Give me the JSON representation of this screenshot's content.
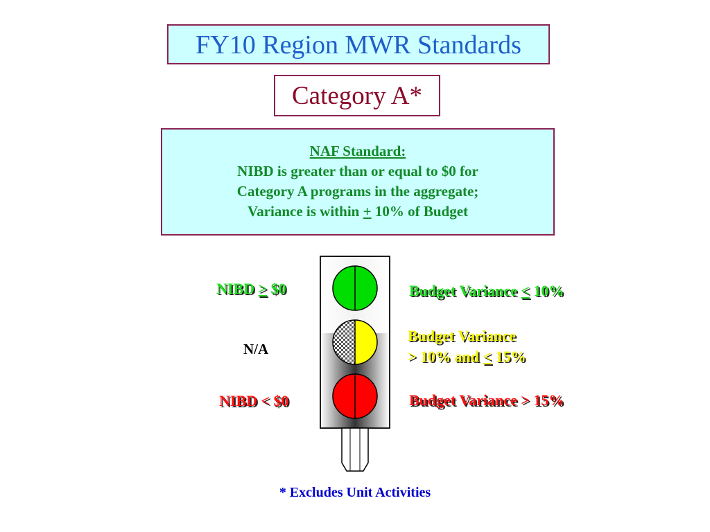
{
  "title": "FY10 Region MWR Standards",
  "category": "Category A*",
  "naf_standard": {
    "heading": "NAF Standard:",
    "line1": "NIBD is greater than or equal to $0 for",
    "line2": "Category A programs in the aggregate;",
    "line3_prefix": "Variance is within ",
    "line3_symbol": "+",
    "line3_suffix": " 10% of Budget"
  },
  "left_labels": {
    "green_prefix": "NIBD ",
    "green_symbol": ">",
    "green_suffix": " $0",
    "yellow": "N/A",
    "red": "NIBD < $0"
  },
  "right_labels": {
    "green_prefix": "Budget Variance ",
    "green_symbol": "<",
    "green_suffix": " 10%",
    "yellow_line1": "Budget Variance",
    "yellow_line2_prefix": "> 10% and ",
    "yellow_line2_symbol": "<",
    "yellow_line2_suffix": " 15%",
    "red": "Budget Variance > 15%"
  },
  "footnote": "* Excludes Unit Activities",
  "colors": {
    "title_text": "#1f5ec9",
    "category_text": "#8b0a2a",
    "box_fill": "#ccffff",
    "box_border": "#8b2252",
    "standard_text": "#128a2a",
    "light_green": "#00dd00",
    "light_yellow": "#ffff00",
    "light_red": "#ff0000",
    "footnote_text": "#0000cc"
  }
}
